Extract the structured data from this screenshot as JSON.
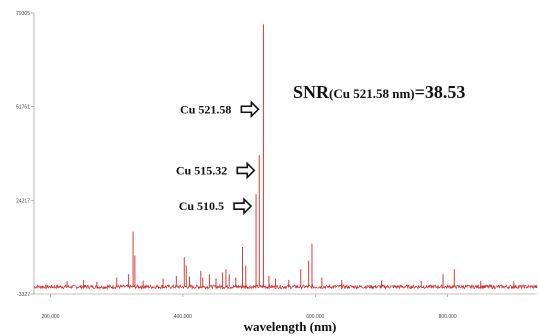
{
  "chart_data": {
    "type": "line",
    "xlabel": "wavelength (nm)",
    "ylabel": "",
    "xlim": [
      175,
      935
    ],
    "ylim": [
      -3327,
      79305
    ],
    "x_ticks": [
      {
        "value": 200,
        "label": "200.000"
      },
      {
        "value": 400,
        "label": "400.000"
      },
      {
        "value": 600,
        "label": "600.000"
      },
      {
        "value": 800,
        "label": "800.000"
      }
    ],
    "y_ticks": [
      {
        "value": 79305,
        "label": "79305"
      },
      {
        "value": 51761,
        "label": "51761"
      },
      {
        "value": 24217,
        "label": "24217"
      },
      {
        "value": -3327,
        "label": "-3327"
      }
    ],
    "series": [
      {
        "color": "#cc2a2a",
        "baseline": -1200,
        "peaks": [
          {
            "x": 225,
            "y": 500
          },
          {
            "x": 250,
            "y": 800
          },
          {
            "x": 270,
            "y": 300
          },
          {
            "x": 300,
            "y": 1500
          },
          {
            "x": 318,
            "y": 2500
          },
          {
            "x": 324.7,
            "y": 15000
          },
          {
            "x": 327.4,
            "y": 8000
          },
          {
            "x": 340,
            "y": 600
          },
          {
            "x": 370,
            "y": 1200
          },
          {
            "x": 390,
            "y": 2000
          },
          {
            "x": 402,
            "y": 7500
          },
          {
            "x": 405,
            "y": 5000
          },
          {
            "x": 410,
            "y": 1800
          },
          {
            "x": 427,
            "y": 3500
          },
          {
            "x": 430,
            "y": 1500
          },
          {
            "x": 440,
            "y": 2500
          },
          {
            "x": 450,
            "y": 1200
          },
          {
            "x": 460,
            "y": 3000
          },
          {
            "x": 465,
            "y": 4000
          },
          {
            "x": 470,
            "y": 2500
          },
          {
            "x": 480,
            "y": 1500
          },
          {
            "x": 490,
            "y": 10500
          },
          {
            "x": 495,
            "y": 5000
          },
          {
            "x": 510.5,
            "y": 26000
          },
          {
            "x": 515.32,
            "y": 37500
          },
          {
            "x": 521.58,
            "y": 76000
          },
          {
            "x": 530,
            "y": 2000
          },
          {
            "x": 540,
            "y": 1200
          },
          {
            "x": 560,
            "y": 800
          },
          {
            "x": 578,
            "y": 4000
          },
          {
            "x": 590,
            "y": 6500
          },
          {
            "x": 595,
            "y": 11500
          },
          {
            "x": 610,
            "y": 1500
          },
          {
            "x": 640,
            "y": 800
          },
          {
            "x": 700,
            "y": 600
          },
          {
            "x": 760,
            "y": 500
          },
          {
            "x": 793,
            "y": 2500
          },
          {
            "x": 810,
            "y": 4000
          },
          {
            "x": 850,
            "y": 500
          },
          {
            "x": 900,
            "y": 400
          }
        ]
      }
    ],
    "annotations": [
      {
        "text": "Cu 521.58",
        "x": 521.58,
        "y": 51000
      },
      {
        "text": "Cu 515.32",
        "x": 515.32,
        "y": 33000
      },
      {
        "text": "Cu 510.5",
        "x": 510.5,
        "y": 22500
      }
    ],
    "snr_text": {
      "prefix": "SNR",
      "subscript": "(Cu 521.58 nm)",
      "suffix": "=38.53"
    },
    "grid": false,
    "legend": "none"
  }
}
